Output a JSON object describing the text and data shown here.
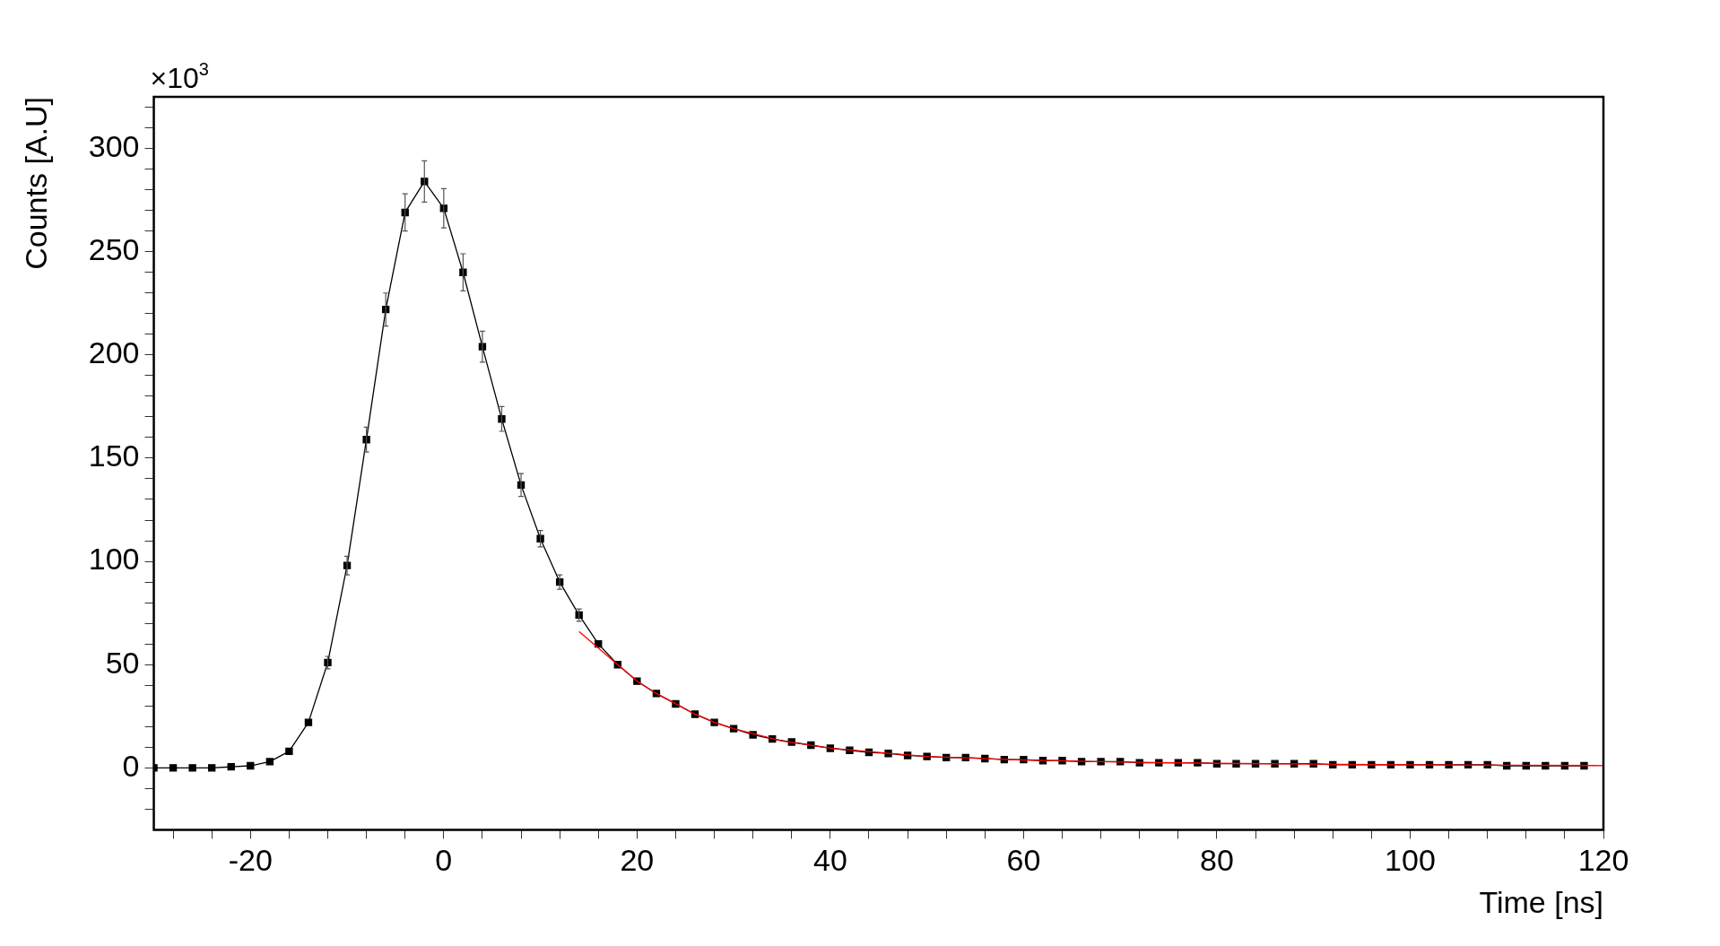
{
  "chart_data": {
    "type": "line",
    "xlabel": "Time [ns]",
    "ylabel": "Counts [A.U]",
    "annotations": [
      "×10$^{3}$"
    ],
    "xlim": [
      -30,
      120
    ],
    "xticks": [
      {
        "value": -28,
        "label": null
      },
      {
        "value": -24,
        "label": null
      },
      -20,
      {
        "value": -16,
        "label": null
      },
      {
        "value": -12,
        "label": null
      },
      {
        "value": -8,
        "label": null
      },
      {
        "value": -4,
        "label": null
      },
      0,
      {
        "value": 4,
        "label": null
      },
      {
        "value": 8,
        "label": null
      },
      {
        "value": 12,
        "label": null
      },
      {
        "value": 16,
        "label": null
      },
      20,
      {
        "value": 24,
        "label": null
      },
      {
        "value": 28,
        "label": null
      },
      {
        "value": 32,
        "label": null
      },
      {
        "value": 36,
        "label": null
      },
      40,
      {
        "value": 44,
        "label": null
      },
      {
        "value": 48,
        "label": null
      },
      {
        "value": 52,
        "label": null
      },
      {
        "value": 56,
        "label": null
      },
      60,
      {
        "value": 64,
        "label": null
      },
      {
        "value": 68,
        "label": null
      },
      {
        "value": 72,
        "label": null
      },
      {
        "value": 76,
        "label": null
      },
      80,
      {
        "value": 84,
        "label": null
      },
      {
        "value": 88,
        "label": null
      },
      {
        "value": 92,
        "label": null
      },
      {
        "value": 96,
        "label": null
      },
      100,
      {
        "value": 104,
        "label": null
      },
      {
        "value": 108,
        "label": null
      },
      {
        "value": 112,
        "label": null
      },
      {
        "value": 116,
        "label": null
      },
      120
    ],
    "ylim": [
      -30,
      325
    ],
    "yticks": [
      {
        "value": -20,
        "label": null
      },
      {
        "value": -10,
        "label": null
      },
      0,
      {
        "value": 10,
        "label": null
      },
      {
        "value": 20,
        "label": null
      },
      {
        "value": 30,
        "label": null
      },
      {
        "value": 40,
        "label": null
      },
      50,
      {
        "value": 60,
        "label": null
      },
      {
        "value": 70,
        "label": null
      },
      {
        "value": 80,
        "label": null
      },
      {
        "value": 90,
        "label": null
      },
      100,
      {
        "value": 110,
        "label": null
      },
      {
        "value": 120,
        "label": null
      },
      {
        "value": 130,
        "label": null
      },
      {
        "value": 140,
        "label": null
      },
      150,
      {
        "value": 160,
        "label": null
      },
      {
        "value": 170,
        "label": null
      },
      {
        "value": 180,
        "label": null
      },
      {
        "value": 190,
        "label": null
      },
      200,
      {
        "value": 210,
        "label": null
      },
      {
        "value": 220,
        "label": null
      },
      {
        "value": 230,
        "label": null
      },
      {
        "value": 240,
        "label": null
      },
      250,
      {
        "value": 260,
        "label": null
      },
      {
        "value": 270,
        "label": null
      },
      {
        "value": 280,
        "label": null
      },
      {
        "value": 290,
        "label": null
      },
      300,
      {
        "value": 310,
        "label": null
      },
      {
        "value": 320,
        "label": null
      }
    ],
    "grid": false,
    "legend": false,
    "line_style": "solid",
    "series": [
      {
        "color": "#000000",
        "marker": "square",
        "x": [
          -30,
          -28,
          -26,
          -24,
          -22,
          -20,
          -18,
          -16,
          -14,
          -12,
          -10,
          -8,
          -6,
          -4,
          -2,
          0,
          2,
          4,
          6,
          8,
          10,
          12,
          14,
          16,
          18,
          20,
          22,
          24,
          26,
          28,
          30,
          32,
          34,
          36,
          38,
          40,
          42,
          44,
          46,
          48,
          50,
          52,
          54,
          56,
          58,
          60,
          62,
          64,
          66,
          68,
          70,
          72,
          74,
          76,
          78,
          80,
          82,
          84,
          86,
          88,
          90,
          92,
          94,
          96,
          98,
          100,
          102,
          104,
          106,
          108,
          110,
          112,
          114,
          116,
          118
        ],
        "values": [
          0,
          0,
          0,
          0,
          0.5,
          1,
          3,
          8,
          22,
          51,
          98,
          159,
          222,
          269,
          284,
          271,
          240,
          204,
          169,
          137,
          111,
          90,
          74,
          60,
          50,
          42,
          36,
          31,
          26,
          22,
          19,
          16,
          14,
          12.5,
          11,
          9.5,
          8.5,
          7.5,
          7,
          6,
          5.5,
          5,
          5,
          4.5,
          4,
          4,
          3.5,
          3.5,
          3,
          3,
          3,
          2.5,
          2.5,
          2.5,
          2.5,
          2,
          2,
          2,
          2,
          2,
          2,
          1.5,
          1.5,
          1.5,
          1.5,
          1.5,
          1.5,
          1.5,
          1.5,
          1.5,
          1,
          1,
          1,
          1,
          1
        ],
        "errors": [
          null,
          null,
          null,
          null,
          null,
          null,
          null,
          null,
          null,
          3,
          4.5,
          6,
          8,
          9,
          10,
          9.5,
          9,
          7.5,
          6,
          5.5,
          4,
          3.5,
          3,
          null,
          null,
          null,
          null,
          null,
          null,
          null,
          null,
          null,
          null,
          null,
          null,
          null,
          null,
          null,
          null,
          null,
          null,
          null,
          null,
          null,
          null,
          null,
          null,
          null,
          null,
          null,
          null,
          null,
          null,
          null,
          null,
          null,
          null,
          null,
          null,
          null,
          null,
          null,
          null,
          null,
          null,
          null,
          null,
          null,
          null,
          null,
          null,
          null,
          null,
          null,
          null
        ]
      },
      {
        "color": "#ff0000",
        "marker": "none",
        "x": [
          14,
          16,
          18,
          20,
          22,
          24,
          26,
          28,
          30,
          35,
          40,
          45,
          50,
          60,
          70,
          80,
          90,
          100,
          110,
          120
        ],
        "values": [
          66,
          58,
          50,
          42,
          36,
          31,
          26,
          22,
          19,
          13,
          9.5,
          7.5,
          5.5,
          3.8,
          2.8,
          2.2,
          1.8,
          1.5,
          1.3,
          1.1
        ]
      }
    ]
  }
}
